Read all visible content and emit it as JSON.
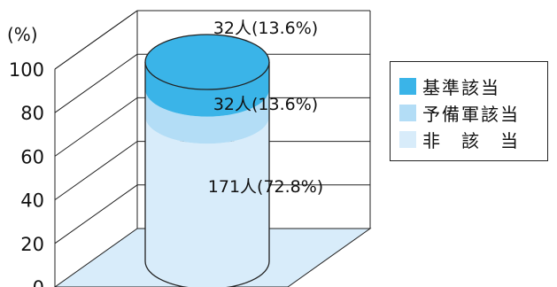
{
  "chart_data": {
    "type": "bar",
    "style": "3d-cylinder-stacked",
    "ylabel": "(%)",
    "ylim": [
      0,
      100
    ],
    "yticks": [
      0,
      20,
      40,
      60,
      80,
      100
    ],
    "grid": true,
    "legend_position": "right",
    "series": [
      {
        "name": "基準該当",
        "count": 32,
        "percent": 13.6,
        "label": "32人(13.6%)",
        "color": "#3ab4e8"
      },
      {
        "name": "予備軍該当",
        "count": 32,
        "percent": 13.6,
        "label": "32人(13.6%)",
        "color": "#b3ddf6"
      },
      {
        "name": "非　該　当",
        "count": 171,
        "percent": 72.8,
        "label": "171人(72.8%)",
        "color": "#d8ecfa"
      }
    ]
  }
}
